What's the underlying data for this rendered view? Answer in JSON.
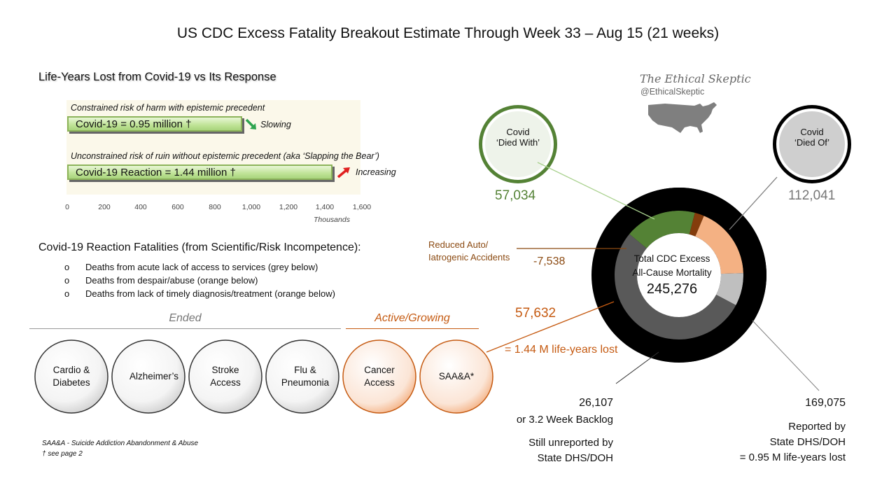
{
  "title": "US CDC Excess Fatality Breakout Estimate Through Week 33  –  Aug 15 (21 weeks)",
  "watermark": {
    "name": "The Ethical Skeptic",
    "handle": "@EthicalSkeptic",
    "icon": "usa-map-icon"
  },
  "colors": {
    "covid_green": "#548235",
    "reaction_orange": "#f4b183",
    "auto_brown": "#843c0c",
    "backlog_grey": "#bfbfbf",
    "reported_grey": "#595959",
    "excess_black": "#000000"
  },
  "life_years": {
    "heading": "Life-Years Lost from Covid-19 vs Its Response",
    "axis_title": "Thousands",
    "bars": [
      {
        "caption": "Constrained risk of harm with epistemic precedent",
        "label": "Covid-19 = 0.95 million †",
        "trend": "Slowing",
        "trend_icon": "arrow-down-right-icon"
      },
      {
        "caption": "Unconstrained risk of ruin without epistemic precedent (aka ‘Slapping the Bear’)",
        "label": "Covid-19 Reaction = 1.44 million †",
        "trend": "Increasing",
        "trend_icon": "arrow-up-right-icon"
      }
    ]
  },
  "reaction": {
    "heading": "Covid-19 Reaction Fatalities (from Scientific/Risk Incompetence):",
    "bullet_marker": "o",
    "bullets": [
      "Deaths from acute lack of access to services (grey below)",
      "Deaths from despair/abuse (orange below)",
      "Deaths from lack of timely diagnosis/treatment (orange below)"
    ],
    "phases": {
      "ended": "Ended",
      "active": "Active/Growing"
    },
    "chevrons": [
      {
        "label": "Cardio & Diabetes",
        "lines": [
          "Cardio &",
          "Diabetes"
        ],
        "status": "ended"
      },
      {
        "label": "Alzheimer’s",
        "lines": [
          "Alzheimer’s"
        ],
        "status": "ended"
      },
      {
        "label": "Stroke Access",
        "lines": [
          "Stroke",
          "Access"
        ],
        "status": "ended"
      },
      {
        "label": "Flu & Pneumonia",
        "lines": [
          "Flu &",
          "Pneumonia"
        ],
        "status": "ended"
      },
      {
        "label": "Cancer Access",
        "lines": [
          "Cancer",
          "Access"
        ],
        "status": "active"
      },
      {
        "label": "SAA&A*",
        "lines": [
          "SAA&A*"
        ],
        "status": "active"
      }
    ],
    "footnotes": [
      "SAA&A - Suicide Addiction Abandonment & Abuse",
      "† see page 2"
    ]
  },
  "donut": {
    "center_line1": "Total CDC Excess",
    "center_line2": "All-Cause Mortality",
    "total": "245,276",
    "died_with": {
      "line1": "Covid",
      "line2": "‘Died With’",
      "value": "57,034"
    },
    "died_of": {
      "line1": "Covid",
      "line2": "‘Died Of’",
      "value": "112,041"
    },
    "auto": {
      "line1": "Reduced Auto/",
      "line2": "Iatrogenic Accidents",
      "value": "-7,538"
    },
    "reaction": {
      "value": "57,632",
      "note": "= 1.44 M life-years lost"
    },
    "backlog": {
      "value": "26,107",
      "line1": "or 3.2 Week Backlog",
      "line2": "Still unreported by",
      "line3": "State DHS/DOH"
    },
    "reported": {
      "value": "169,075",
      "line1": "Reported by",
      "line2": "State DHS/DOH",
      "line3": "= 0.95 M life-years lost"
    }
  },
  "chart_data": [
    {
      "type": "bar",
      "orientation": "horizontal",
      "title": "Life-Years Lost from Covid-19 vs Its Response",
      "xlabel": "Thousands",
      "xlim": [
        0,
        1600
      ],
      "xticks": [
        "0",
        "200",
        "400",
        "600",
        "800",
        "1,000",
        "1,200",
        "1,400",
        "1,600"
      ],
      "categories": [
        "Covid-19",
        "Covid-19 Reaction"
      ],
      "values": [
        950,
        1440
      ],
      "grid": false
    },
    {
      "type": "pie",
      "style": "donut",
      "title": "Total CDC Excess All-Cause Mortality",
      "total": 245276,
      "inner_ring": [
        {
          "name": "Covid ‘Died With’",
          "value": 57034,
          "color": "#548235"
        },
        {
          "name": "Reduced Auto/Iatrogenic Accidents",
          "value": -7538,
          "color": "#843c0c"
        },
        {
          "name": "Covid-19 Reaction",
          "value": 57632,
          "color": "#f4b183"
        },
        {
          "name": "Still unreported by State DHS/DOH",
          "value": 26107,
          "color": "#bfbfbf"
        },
        {
          "name": "Reported by State DHS/DOH",
          "value": 169075,
          "color": "#595959"
        }
      ],
      "outer_ring": [
        {
          "name": "Covid ‘Died Of’",
          "value": 112041,
          "color": "#000000"
        }
      ]
    }
  ]
}
